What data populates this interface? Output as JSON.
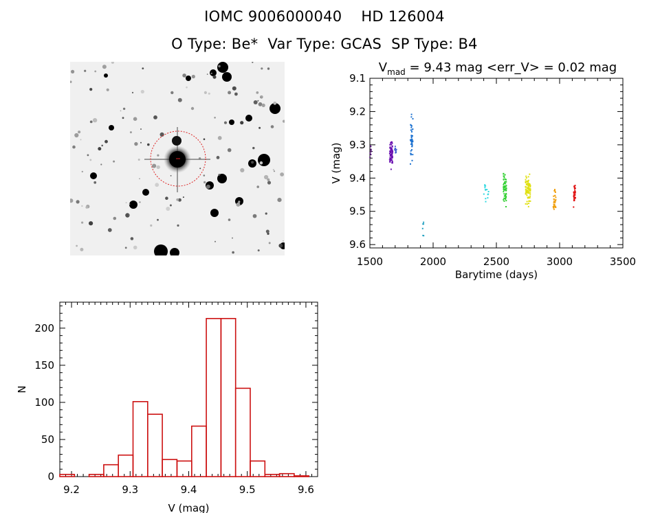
{
  "header": {
    "title_line1": "IOMC 9006000040    HD 126004",
    "title_line2": "O Type: Be*  Var Type: GCAS  SP Type: B4"
  },
  "colors": {
    "histogram_bar": "#cc1111",
    "aperture_circle": "#dd2222",
    "axes": "#000000"
  },
  "chart_data": [
    {
      "type": "scatter",
      "title": "V_mad = 9.43 mag <err_V> = 0.02 mag",
      "title_parts": {
        "base": "V",
        "sub": "mad",
        "rest": " = 9.43 mag <err_V> = 0.02 mag"
      },
      "xlabel": "Barytime (days)",
      "ylabel": "V (mag)",
      "xlim": [
        1500,
        3500
      ],
      "ylim": [
        9.61,
        9.1
      ],
      "y_inverted": true,
      "xticks": [
        1500,
        2000,
        2500,
        3000,
        3500
      ],
      "yticks": [
        9.1,
        9.2,
        9.3,
        9.4,
        9.5,
        9.6
      ],
      "ytick_labels": [
        "9.1",
        "9.2",
        "9.3",
        "9.4",
        "9.5",
        "9.6"
      ],
      "grid": false,
      "groups": [
        {
          "x_range": [
            1500,
            1510
          ],
          "y_range": [
            9.28,
            9.35
          ],
          "n": 8,
          "color": "#5a1a80"
        },
        {
          "x_range": [
            1655,
            1680
          ],
          "y_range": [
            9.27,
            9.39
          ],
          "n": 70,
          "color": "#6a10b0"
        },
        {
          "x_range": [
            1695,
            1712
          ],
          "y_range": [
            9.3,
            9.33
          ],
          "n": 10,
          "color": "#4060d0"
        },
        {
          "x_range": [
            1820,
            1840
          ],
          "y_range": [
            9.19,
            9.37
          ],
          "n": 40,
          "color": "#1a70d0"
        },
        {
          "x_range": [
            1915,
            1925
          ],
          "y_range": [
            9.52,
            9.58
          ],
          "n": 6,
          "color": "#20a0c0"
        },
        {
          "x_range": [
            2400,
            2440
          ],
          "y_range": [
            9.4,
            9.48
          ],
          "n": 14,
          "color": "#30d8e0"
        },
        {
          "x_range": [
            2555,
            2580
          ],
          "y_range": [
            9.36,
            9.5
          ],
          "n": 55,
          "color": "#30d030"
        },
        {
          "x_range": [
            2730,
            2770
          ],
          "y_range": [
            9.37,
            9.5
          ],
          "n": 90,
          "color": "#e0e010"
        },
        {
          "x_range": [
            2950,
            2970
          ],
          "y_range": [
            9.42,
            9.51
          ],
          "n": 30,
          "color": "#f0a010"
        },
        {
          "x_range": [
            3110,
            3125
          ],
          "y_range": [
            9.41,
            9.49
          ],
          "n": 30,
          "color": "#e01010"
        }
      ]
    },
    {
      "type": "bar",
      "xlabel": "V (mag)",
      "ylabel": "N",
      "xlim": [
        9.18,
        9.62
      ],
      "ylim": [
        0,
        235
      ],
      "xticks": [
        9.2,
        9.3,
        9.4,
        9.5,
        9.6
      ],
      "xtick_labels": [
        "9.2",
        "9.3",
        "9.4",
        "9.5",
        "9.6"
      ],
      "yticks": [
        0,
        50,
        100,
        150,
        200
      ],
      "bin_edges": [
        9.18,
        9.205,
        9.23,
        9.255,
        9.28,
        9.305,
        9.33,
        9.355,
        9.38,
        9.405,
        9.43,
        9.455,
        9.48,
        9.505,
        9.53,
        9.555,
        9.58,
        9.605
      ],
      "values": [
        3,
        0,
        3,
        16,
        29,
        101,
        84,
        23,
        21,
        68,
        213,
        213,
        119,
        21,
        3,
        4,
        1
      ],
      "grid": false
    }
  ]
}
